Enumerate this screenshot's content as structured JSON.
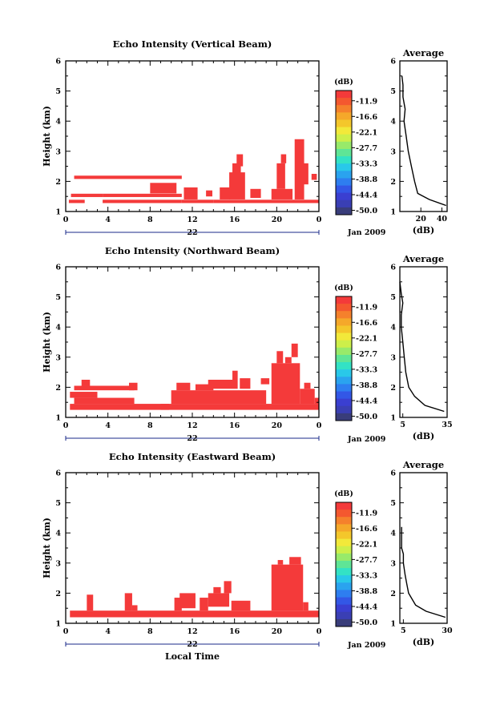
{
  "figure": {
    "date_label": "Jan 2009",
    "day_label": "22",
    "xlabel": "Local Time",
    "ylabel": "Height (km)",
    "colorbar": {
      "unit": "(dB)",
      "ticks": [
        "-11.9",
        "-16.6",
        "-22.1",
        "-27.7",
        "-33.3",
        "-38.8",
        "-44.4",
        "-50.0"
      ],
      "colors": [
        "#f43a3a",
        "#f4582f",
        "#f5812c",
        "#f5a82a",
        "#f4c72b",
        "#f2e93a",
        "#cdef4a",
        "#98ea6a",
        "#5fe596",
        "#33e2c5",
        "#29c8e9",
        "#2aa3ef",
        "#2e7ef0",
        "#3357e6",
        "#3a3fd1",
        "#3a3fb4",
        "#393d7a"
      ]
    },
    "average": {
      "title": "Average",
      "xlabel": "(dB)"
    }
  },
  "chart_data": [
    {
      "type": "heatmap",
      "title": "Echo Intensity (Vertical Beam)",
      "xlabel": "",
      "ylabel": "Height (km)",
      "xlim": [
        0,
        24
      ],
      "ylim": [
        1,
        6
      ],
      "xticks": [
        "0",
        "4",
        "8",
        "12",
        "16",
        "20",
        "0"
      ],
      "yticks": [
        "1",
        "2",
        "3",
        "4",
        "5",
        "6"
      ],
      "color": "#f43a3a",
      "cells": [
        [
          0.3,
          1.8,
          1.28,
          1.39
        ],
        [
          0.5,
          3.5,
          1.48,
          1.59
        ],
        [
          3.5,
          11.0,
          1.28,
          1.39
        ],
        [
          3.5,
          11.0,
          1.48,
          1.59
        ],
        [
          0.8,
          11.0,
          2.08,
          2.19
        ],
        [
          8.0,
          10.5,
          1.6,
          1.95
        ],
        [
          11.0,
          14.0,
          1.28,
          1.39
        ],
        [
          11.2,
          12.5,
          1.4,
          1.8
        ],
        [
          13.3,
          13.9,
          1.5,
          1.7
        ],
        [
          14.0,
          24.0,
          1.28,
          1.39
        ],
        [
          14.6,
          15.6,
          1.4,
          1.8
        ],
        [
          15.5,
          17.0,
          1.4,
          2.3
        ],
        [
          15.8,
          16.6,
          2.2,
          2.6
        ],
        [
          16.2,
          16.8,
          2.5,
          2.9
        ],
        [
          17.5,
          18.5,
          1.45,
          1.75
        ],
        [
          19.5,
          21.5,
          1.4,
          1.75
        ],
        [
          20.0,
          20.8,
          1.75,
          2.6
        ],
        [
          20.4,
          20.9,
          2.6,
          2.9
        ],
        [
          21.7,
          22.6,
          1.4,
          3.4
        ],
        [
          22.5,
          23.0,
          1.9,
          2.6
        ],
        [
          23.3,
          23.8,
          2.05,
          2.25
        ]
      ],
      "average_xticks": [
        "20",
        "40"
      ],
      "average_xlim": [
        0,
        45
      ],
      "average_profile": {
        "height": [
          1.2,
          1.4,
          1.6,
          2.0,
          2.5,
          3.0,
          3.5,
          4.0,
          4.4,
          4.8,
          5.2,
          5.5
        ],
        "db": [
          44,
          28,
          17,
          14,
          11,
          8,
          6,
          4,
          5,
          3,
          3,
          2
        ]
      }
    },
    {
      "type": "heatmap",
      "title": "Echo Intensity (Northward Beam)",
      "xlabel": "",
      "ylabel": "Height (km)",
      "xlim": [
        0,
        24
      ],
      "ylim": [
        1,
        6
      ],
      "xticks": [
        "0",
        "4",
        "8",
        "12",
        "16",
        "20",
        "0"
      ],
      "yticks": [
        "1",
        "2",
        "3",
        "4",
        "5",
        "6"
      ],
      "color": "#f43a3a",
      "cells": [
        [
          0.4,
          9.8,
          1.25,
          1.45
        ],
        [
          0.8,
          6.5,
          1.45,
          1.65
        ],
        [
          0.4,
          3.0,
          1.65,
          1.85
        ],
        [
          0.8,
          6.5,
          1.9,
          2.05
        ],
        [
          6.0,
          6.8,
          1.9,
          2.15
        ],
        [
          1.5,
          2.3,
          2.05,
          2.25
        ],
        [
          9.0,
          24.0,
          1.25,
          1.45
        ],
        [
          10.0,
          19.0,
          1.45,
          1.9
        ],
        [
          10.5,
          11.8,
          1.9,
          2.15
        ],
        [
          12.3,
          14.0,
          1.9,
          2.1
        ],
        [
          13.5,
          16.3,
          1.95,
          2.25
        ],
        [
          15.8,
          16.3,
          2.25,
          2.55
        ],
        [
          16.5,
          17.5,
          1.95,
          2.3
        ],
        [
          18.5,
          19.3,
          2.1,
          2.3
        ],
        [
          19.5,
          22.2,
          1.45,
          2.8
        ],
        [
          20.0,
          20.6,
          2.8,
          3.2
        ],
        [
          20.8,
          21.4,
          2.8,
          3.0
        ],
        [
          21.4,
          22.0,
          3.0,
          3.45
        ],
        [
          22.2,
          23.6,
          1.45,
          1.95
        ],
        [
          22.6,
          23.2,
          1.95,
          2.15
        ],
        [
          23.6,
          24.0,
          1.45,
          1.65
        ]
      ],
      "average_xticks": [
        "5",
        "35"
      ],
      "average_xlim": [
        3,
        35
      ],
      "average_profile": {
        "height": [
          1.2,
          1.4,
          1.7,
          2.0,
          2.5,
          3.0,
          3.5,
          4.0,
          4.4,
          4.8,
          5.1,
          5.5
        ],
        "db": [
          33,
          20,
          13,
          9,
          7,
          6,
          5,
          4,
          4,
          5,
          4,
          3
        ]
      }
    },
    {
      "type": "heatmap",
      "title": "Echo Intensity (Eastward Beam)",
      "xlabel": "Local Time",
      "ylabel": "Height (km)",
      "xlim": [
        0,
        24
      ],
      "ylim": [
        1,
        6
      ],
      "xticks": [
        "0",
        "4",
        "8",
        "12",
        "16",
        "20",
        "0"
      ],
      "yticks": [
        "1",
        "2",
        "3",
        "4",
        "5",
        "6"
      ],
      "color": "#f43a3a",
      "cells": [
        [
          0.4,
          24.0,
          1.2,
          1.42
        ],
        [
          2.0,
          2.6,
          1.42,
          1.95
        ],
        [
          5.6,
          6.3,
          1.42,
          2.0
        ],
        [
          6.3,
          6.8,
          1.42,
          1.6
        ],
        [
          10.3,
          11.0,
          1.42,
          1.85
        ],
        [
          10.8,
          12.3,
          1.5,
          2.0
        ],
        [
          12.7,
          13.5,
          1.42,
          1.85
        ],
        [
          13.5,
          15.5,
          1.55,
          2.0
        ],
        [
          14.0,
          14.7,
          2.0,
          2.2
        ],
        [
          15.0,
          15.7,
          2.0,
          2.4
        ],
        [
          15.7,
          17.5,
          1.42,
          1.75
        ],
        [
          19.5,
          22.5,
          1.42,
          2.95
        ],
        [
          20.1,
          20.6,
          2.95,
          3.1
        ],
        [
          21.2,
          22.3,
          2.95,
          3.2
        ],
        [
          22.5,
          23.0,
          1.42,
          1.7
        ]
      ],
      "average_xticks": [
        "5",
        "30"
      ],
      "average_xlim": [
        3,
        30
      ],
      "average_profile": {
        "height": [
          1.2,
          1.4,
          1.6,
          2.0,
          2.3,
          2.6,
          3.0,
          3.3,
          3.5,
          3.9,
          4.2
        ],
        "db": [
          29,
          18,
          12,
          8,
          7,
          6,
          5,
          5,
          4,
          4,
          4
        ]
      }
    }
  ]
}
